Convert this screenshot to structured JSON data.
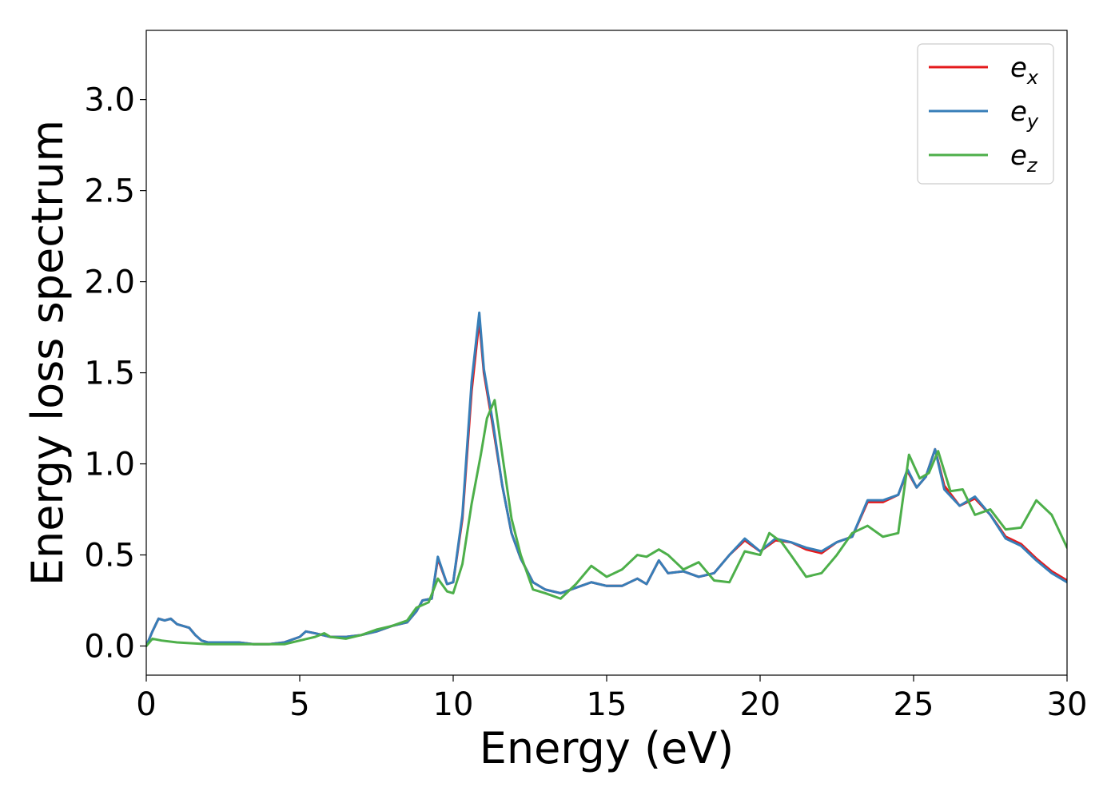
{
  "chart_data": {
    "type": "line",
    "title": "",
    "xlabel": "Energy (eV)",
    "ylabel": "Energy loss spectrum",
    "xlim": [
      0,
      30
    ],
    "ylim": [
      -0.16,
      3.38
    ],
    "xticks": [
      0,
      5,
      10,
      15,
      20,
      25,
      30
    ],
    "yticks": [
      "0.0",
      "0.5",
      "1.0",
      "1.5",
      "2.0",
      "2.5",
      "3.0"
    ],
    "grid": false,
    "legend_position": "top-right",
    "series": [
      {
        "name": "e",
        "subscript": "x",
        "color": "#e41a1c",
        "points": [
          [
            0,
            0
          ],
          [
            0.2,
            0.08
          ],
          [
            0.4,
            0.15
          ],
          [
            0.6,
            0.14
          ],
          [
            0.8,
            0.15
          ],
          [
            1.0,
            0.12
          ],
          [
            1.2,
            0.11
          ],
          [
            1.4,
            0.1
          ],
          [
            1.6,
            0.06
          ],
          [
            1.8,
            0.03
          ],
          [
            2.0,
            0.02
          ],
          [
            2.5,
            0.02
          ],
          [
            3.0,
            0.02
          ],
          [
            3.5,
            0.01
          ],
          [
            4.0,
            0.01
          ],
          [
            4.5,
            0.02
          ],
          [
            5.0,
            0.05
          ],
          [
            5.2,
            0.08
          ],
          [
            5.5,
            0.07
          ],
          [
            6.0,
            0.05
          ],
          [
            6.5,
            0.05
          ],
          [
            7.0,
            0.06
          ],
          [
            7.5,
            0.08
          ],
          [
            8.0,
            0.11
          ],
          [
            8.5,
            0.13
          ],
          [
            8.8,
            0.19
          ],
          [
            9.0,
            0.25
          ],
          [
            9.3,
            0.26
          ],
          [
            9.5,
            0.48
          ],
          [
            9.8,
            0.34
          ],
          [
            10.0,
            0.35
          ],
          [
            10.3,
            0.7
          ],
          [
            10.6,
            1.4
          ],
          [
            10.85,
            1.79
          ],
          [
            11.0,
            1.5
          ],
          [
            11.3,
            1.2
          ],
          [
            11.6,
            0.88
          ],
          [
            11.9,
            0.62
          ],
          [
            12.2,
            0.48
          ],
          [
            12.6,
            0.35
          ],
          [
            13.0,
            0.31
          ],
          [
            13.5,
            0.29
          ],
          [
            14.0,
            0.32
          ],
          [
            14.5,
            0.35
          ],
          [
            15.0,
            0.33
          ],
          [
            15.5,
            0.33
          ],
          [
            16.0,
            0.37
          ],
          [
            16.3,
            0.34
          ],
          [
            16.7,
            0.47
          ],
          [
            17.0,
            0.4
          ],
          [
            17.5,
            0.41
          ],
          [
            18.0,
            0.38
          ],
          [
            18.5,
            0.4
          ],
          [
            19.0,
            0.5
          ],
          [
            19.5,
            0.58
          ],
          [
            20.0,
            0.52
          ],
          [
            20.5,
            0.58
          ],
          [
            21.0,
            0.57
          ],
          [
            21.5,
            0.53
          ],
          [
            22.0,
            0.51
          ],
          [
            22.5,
            0.57
          ],
          [
            23.0,
            0.6
          ],
          [
            23.5,
            0.79
          ],
          [
            24.0,
            0.79
          ],
          [
            24.5,
            0.83
          ],
          [
            24.8,
            0.96
          ],
          [
            25.1,
            0.87
          ],
          [
            25.4,
            0.93
          ],
          [
            25.7,
            1.08
          ],
          [
            26.0,
            0.88
          ],
          [
            26.5,
            0.77
          ],
          [
            27.0,
            0.81
          ],
          [
            27.5,
            0.72
          ],
          [
            28.0,
            0.6
          ],
          [
            28.5,
            0.56
          ],
          [
            29.0,
            0.48
          ],
          [
            29.5,
            0.41
          ],
          [
            30.0,
            0.36
          ]
        ]
      },
      {
        "name": "e",
        "subscript": "y",
        "color": "#377eb8",
        "points": [
          [
            0,
            0
          ],
          [
            0.2,
            0.08
          ],
          [
            0.4,
            0.15
          ],
          [
            0.6,
            0.14
          ],
          [
            0.8,
            0.15
          ],
          [
            1.0,
            0.12
          ],
          [
            1.2,
            0.11
          ],
          [
            1.4,
            0.1
          ],
          [
            1.6,
            0.06
          ],
          [
            1.8,
            0.03
          ],
          [
            2.0,
            0.02
          ],
          [
            2.5,
            0.02
          ],
          [
            3.0,
            0.02
          ],
          [
            3.5,
            0.01
          ],
          [
            4.0,
            0.01
          ],
          [
            4.5,
            0.02
          ],
          [
            5.0,
            0.05
          ],
          [
            5.2,
            0.08
          ],
          [
            5.5,
            0.07
          ],
          [
            6.0,
            0.05
          ],
          [
            6.5,
            0.05
          ],
          [
            7.0,
            0.06
          ],
          [
            7.5,
            0.08
          ],
          [
            8.0,
            0.11
          ],
          [
            8.5,
            0.13
          ],
          [
            8.8,
            0.19
          ],
          [
            9.0,
            0.25
          ],
          [
            9.3,
            0.26
          ],
          [
            9.5,
            0.49
          ],
          [
            9.8,
            0.34
          ],
          [
            10.0,
            0.35
          ],
          [
            10.3,
            0.72
          ],
          [
            10.6,
            1.45
          ],
          [
            10.85,
            1.83
          ],
          [
            11.0,
            1.52
          ],
          [
            11.3,
            1.22
          ],
          [
            11.6,
            0.88
          ],
          [
            11.9,
            0.62
          ],
          [
            12.2,
            0.48
          ],
          [
            12.6,
            0.35
          ],
          [
            13.0,
            0.31
          ],
          [
            13.5,
            0.29
          ],
          [
            14.0,
            0.32
          ],
          [
            14.5,
            0.35
          ],
          [
            15.0,
            0.33
          ],
          [
            15.5,
            0.33
          ],
          [
            16.0,
            0.37
          ],
          [
            16.3,
            0.34
          ],
          [
            16.7,
            0.47
          ],
          [
            17.0,
            0.4
          ],
          [
            17.5,
            0.41
          ],
          [
            18.0,
            0.38
          ],
          [
            18.5,
            0.4
          ],
          [
            19.0,
            0.5
          ],
          [
            19.5,
            0.59
          ],
          [
            20.0,
            0.52
          ],
          [
            20.5,
            0.59
          ],
          [
            21.0,
            0.57
          ],
          [
            21.5,
            0.54
          ],
          [
            22.0,
            0.52
          ],
          [
            22.5,
            0.57
          ],
          [
            23.0,
            0.6
          ],
          [
            23.5,
            0.8
          ],
          [
            24.0,
            0.8
          ],
          [
            24.5,
            0.83
          ],
          [
            24.8,
            0.97
          ],
          [
            25.1,
            0.87
          ],
          [
            25.4,
            0.93
          ],
          [
            25.7,
            1.08
          ],
          [
            26.0,
            0.86
          ],
          [
            26.5,
            0.77
          ],
          [
            27.0,
            0.82
          ],
          [
            27.5,
            0.72
          ],
          [
            28.0,
            0.59
          ],
          [
            28.5,
            0.55
          ],
          [
            29.0,
            0.47
          ],
          [
            29.5,
            0.4
          ],
          [
            30.0,
            0.35
          ]
        ]
      },
      {
        "name": "e",
        "subscript": "z",
        "color": "#4daf4a",
        "points": [
          [
            0,
            0
          ],
          [
            0.2,
            0.04
          ],
          [
            0.5,
            0.03
          ],
          [
            1.0,
            0.02
          ],
          [
            2.0,
            0.01
          ],
          [
            3.0,
            0.01
          ],
          [
            4.0,
            0.01
          ],
          [
            4.5,
            0.01
          ],
          [
            5.0,
            0.03
          ],
          [
            5.5,
            0.05
          ],
          [
            5.8,
            0.07
          ],
          [
            6.0,
            0.05
          ],
          [
            6.5,
            0.04
          ],
          [
            7.0,
            0.06
          ],
          [
            7.5,
            0.09
          ],
          [
            8.0,
            0.11
          ],
          [
            8.5,
            0.14
          ],
          [
            8.8,
            0.21
          ],
          [
            9.2,
            0.24
          ],
          [
            9.5,
            0.37
          ],
          [
            9.8,
            0.3
          ],
          [
            10.0,
            0.29
          ],
          [
            10.3,
            0.45
          ],
          [
            10.6,
            0.78
          ],
          [
            10.9,
            1.05
          ],
          [
            11.1,
            1.25
          ],
          [
            11.35,
            1.35
          ],
          [
            11.6,
            1.05
          ],
          [
            11.9,
            0.7
          ],
          [
            12.2,
            0.5
          ],
          [
            12.6,
            0.31
          ],
          [
            13.0,
            0.29
          ],
          [
            13.5,
            0.26
          ],
          [
            14.0,
            0.34
          ],
          [
            14.5,
            0.44
          ],
          [
            15.0,
            0.38
          ],
          [
            15.5,
            0.42
          ],
          [
            16.0,
            0.5
          ],
          [
            16.3,
            0.49
          ],
          [
            16.7,
            0.53
          ],
          [
            17.0,
            0.5
          ],
          [
            17.5,
            0.42
          ],
          [
            18.0,
            0.46
          ],
          [
            18.5,
            0.36
          ],
          [
            19.0,
            0.35
          ],
          [
            19.5,
            0.52
          ],
          [
            20.0,
            0.5
          ],
          [
            20.3,
            0.62
          ],
          [
            20.7,
            0.57
          ],
          [
            21.0,
            0.5
          ],
          [
            21.5,
            0.38
          ],
          [
            22.0,
            0.4
          ],
          [
            22.5,
            0.5
          ],
          [
            23.0,
            0.62
          ],
          [
            23.5,
            0.66
          ],
          [
            24.0,
            0.6
          ],
          [
            24.5,
            0.62
          ],
          [
            24.85,
            1.05
          ],
          [
            25.2,
            0.92
          ],
          [
            25.5,
            0.95
          ],
          [
            25.8,
            1.07
          ],
          [
            26.2,
            0.85
          ],
          [
            26.6,
            0.86
          ],
          [
            27.0,
            0.72
          ],
          [
            27.5,
            0.75
          ],
          [
            28.0,
            0.64
          ],
          [
            28.5,
            0.65
          ],
          [
            29.0,
            0.8
          ],
          [
            29.5,
            0.72
          ],
          [
            30.0,
            0.54
          ]
        ]
      }
    ]
  }
}
